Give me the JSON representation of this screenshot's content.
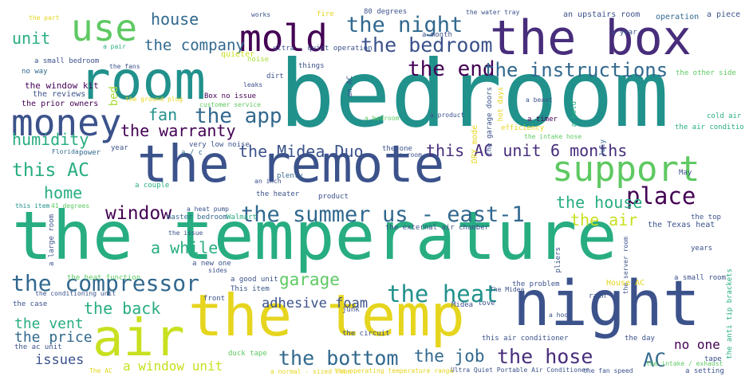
{
  "palette": {
    "yellow": "#e6d51e",
    "lime": "#a8db34",
    "green": "#5ec962",
    "teal": "#21918c",
    "seafoam": "#27ad81",
    "blue": "#3b528b",
    "indigo": "#31688e",
    "purple": "#440154",
    "violet": "#472d7b"
  },
  "words": [
    {
      "text": "bedroom",
      "color": "#21918c",
      "vertical": false
    },
    {
      "text": "the temperature",
      "color": "#27ad81",
      "vertical": false
    },
    {
      "text": "the remote",
      "color": "#3b528b",
      "vertical": false
    },
    {
      "text": "the box",
      "color": "#472d7b",
      "vertical": false
    },
    {
      "text": "room",
      "color": "#21918c",
      "vertical": false
    },
    {
      "text": "night",
      "color": "#3b528b",
      "vertical": false
    },
    {
      "text": "the temp",
      "color": "#e6d51e",
      "vertical": false
    },
    {
      "text": "air",
      "color": "#c8e020",
      "vertical": false
    },
    {
      "text": "mold",
      "color": "#440154",
      "vertical": false
    },
    {
      "text": "use",
      "color": "#5ec962",
      "vertical": false
    },
    {
      "text": "money",
      "color": "#3b528b",
      "vertical": false
    },
    {
      "text": "support",
      "color": "#5ec962",
      "vertical": false
    },
    {
      "text": "the night",
      "color": "#31688e",
      "vertical": false
    },
    {
      "text": "the bedroom",
      "color": "#3b528b",
      "vertical": false
    },
    {
      "text": "the end",
      "color": "#440154",
      "vertical": false
    },
    {
      "text": "the instructions",
      "color": "#31688e",
      "vertical": false
    },
    {
      "text": "the app",
      "color": "#31688e",
      "vertical": false
    },
    {
      "text": "the compressor",
      "color": "#31688e",
      "vertical": false
    },
    {
      "text": "the summer",
      "color": "#31688e",
      "vertical": false
    },
    {
      "text": "us - east-1",
      "color": "#31688e",
      "vertical": false
    },
    {
      "text": "window",
      "color": "#440154",
      "vertical": false
    },
    {
      "text": "place",
      "color": "#440154",
      "vertical": false
    },
    {
      "text": "the heat",
      "color": "#21918c",
      "vertical": false
    },
    {
      "text": "the bottom",
      "color": "#31688e",
      "vertical": false
    },
    {
      "text": "the hose",
      "color": "#472d7b",
      "vertical": false
    },
    {
      "text": "the job",
      "color": "#31688e",
      "vertical": false
    },
    {
      "text": "AC",
      "color": "#31688e",
      "vertical": false
    },
    {
      "text": "garage",
      "color": "#5ec962",
      "vertical": false
    },
    {
      "text": "house",
      "color": "#31688e",
      "vertical": false
    },
    {
      "text": "unit",
      "color": "#27ad81",
      "vertical": false
    },
    {
      "text": "the company",
      "color": "#31688e",
      "vertical": false
    },
    {
      "text": "fan",
      "color": "#21918c",
      "vertical": false
    },
    {
      "text": "the warranty",
      "color": "#440154",
      "vertical": false
    },
    {
      "text": "humidity",
      "color": "#27ad81",
      "vertical": false
    },
    {
      "text": "the Midea Duo",
      "color": "#3b528b",
      "vertical": false
    },
    {
      "text": "this AC unit",
      "color": "#472d7b",
      "vertical": false
    },
    {
      "text": "6 months",
      "color": "#472d7b",
      "vertical": false
    },
    {
      "text": "this AC",
      "color": "#27ad81",
      "vertical": false
    },
    {
      "text": "home",
      "color": "#27ad81",
      "vertical": false
    },
    {
      "text": "the house",
      "color": "#27ad81",
      "vertical": false
    },
    {
      "text": "the air",
      "color": "#c8e020",
      "vertical": false
    },
    {
      "text": "a while",
      "color": "#27ad81",
      "vertical": false
    },
    {
      "text": "the back",
      "color": "#27ad81",
      "vertical": false
    },
    {
      "text": "adhesive foam",
      "color": "#3b528b",
      "vertical": false
    },
    {
      "text": "the vent",
      "color": "#27ad81",
      "vertical": false
    },
    {
      "text": "the price",
      "color": "#31688e",
      "vertical": false
    },
    {
      "text": "issues",
      "color": "#3b528b",
      "vertical": false
    },
    {
      "text": "a window unit",
      "color": "#c8e020",
      "vertical": false
    },
    {
      "text": "no one",
      "color": "#440154",
      "vertical": false
    },
    {
      "text": "bed",
      "color": "#a8db34",
      "vertical": true
    },
    {
      "text": "the window kit",
      "color": "#440154",
      "vertical": false
    },
    {
      "text": "the reviews",
      "color": "#3b528b",
      "vertical": false
    },
    {
      "text": "the prior owners",
      "color": "#440154",
      "vertical": false
    },
    {
      "text": "a small bedroom",
      "color": "#3b528b",
      "vertical": false
    },
    {
      "text": "no way",
      "color": "#31688e",
      "vertical": false
    },
    {
      "text": "the fans",
      "color": "#3b528b",
      "vertical": false
    },
    {
      "text": "a pair",
      "color": "#27ad81",
      "vertical": false
    },
    {
      "text": "quieter",
      "color": "#c8e020",
      "vertical": false
    },
    {
      "text": "noise",
      "color": "#a8db34",
      "vertical": false
    },
    {
      "text": "things",
      "color": "#3b528b",
      "vertical": false
    },
    {
      "text": "dirt",
      "color": "#3b528b",
      "vertical": false
    },
    {
      "text": "leaks",
      "color": "#3b528b",
      "vertical": false
    },
    {
      "text": "Box no issue",
      "color": "#440154",
      "vertical": false
    },
    {
      "text": "the ground plug",
      "color": "#e6d51e",
      "vertical": false
    },
    {
      "text": "customer service",
      "color": "#5ec962",
      "vertical": false
    },
    {
      "text": "a month",
      "color": "#3b528b",
      "vertical": false
    },
    {
      "text": "ultra - quiet operation",
      "color": "#3b528b",
      "vertical": false
    },
    {
      "text": "an upstairs room",
      "color": "#3b528b",
      "vertical": false
    },
    {
      "text": "operation",
      "color": "#31688e",
      "vertical": false
    },
    {
      "text": "a piece",
      "color": "#3b528b",
      "vertical": false
    },
    {
      "text": "a year",
      "color": "#3b528b",
      "vertical": false
    },
    {
      "text": "the other side",
      "color": "#5ec962",
      "vertical": false
    },
    {
      "text": "cold air",
      "color": "#27ad81",
      "vertical": false
    },
    {
      "text": "the air conditioner",
      "color": "#27ad81",
      "vertical": false
    },
    {
      "text": "a timer",
      "color": "#440154",
      "vertical": false
    },
    {
      "text": "efficiency",
      "color": "#e6d51e",
      "vertical": false
    },
    {
      "text": "the intake hose",
      "color": "#5ec962",
      "vertical": false
    },
    {
      "text": "a hold",
      "color": "#27ad81",
      "vertical": true
    },
    {
      "text": "July",
      "color": "#31688e",
      "vertical": true
    },
    {
      "text": "the one",
      "color": "#3b528b",
      "vertical": false
    },
    {
      "text": "a room",
      "color": "#3b528b",
      "vertical": false
    },
    {
      "text": "DRY mode",
      "color": "#e6d51e",
      "vertical": true
    },
    {
      "text": "the garage doors",
      "color": "#3b528b",
      "vertical": true
    },
    {
      "text": "a bedroom",
      "color": "#5ec962",
      "vertical": false
    },
    {
      "text": "a product",
      "color": "#3b528b",
      "vertical": false
    },
    {
      "text": "hot days",
      "color": "#e6d51e",
      "vertical": true
    },
    {
      "text": "a beast",
      "color": "#3b528b",
      "vertical": false
    },
    {
      "text": "an AC",
      "color": "#3b528b",
      "vertical": true
    },
    {
      "text": "a / c",
      "color": "#31688e",
      "vertical": false
    },
    {
      "text": "plenty",
      "color": "#31688e",
      "vertical": false
    },
    {
      "text": "an inch",
      "color": "#3b528b",
      "vertical": false
    },
    {
      "text": "very low noise",
      "color": "#3b528b",
      "vertical": false
    },
    {
      "text": "year",
      "color": "#3b528b",
      "vertical": false
    },
    {
      "text": "power",
      "color": "#31688e",
      "vertical": false
    },
    {
      "text": "Florida",
      "color": "#31688e",
      "vertical": false
    },
    {
      "text": "a couple",
      "color": "#27ad81",
      "vertical": false
    },
    {
      "text": "this item",
      "color": "#21918c",
      "vertical": false
    },
    {
      "text": "41 degrees",
      "color": "#5ec962",
      "vertical": false
    },
    {
      "text": "a large room",
      "color": "#3b528b",
      "vertical": true
    },
    {
      "text": "the heater",
      "color": "#3b528b",
      "vertical": false
    },
    {
      "text": "product",
      "color": "#3b528b",
      "vertical": false
    },
    {
      "text": "a heat pump",
      "color": "#3b528b",
      "vertical": false
    },
    {
      "text": "master bedroom",
      "color": "#31688e",
      "vertical": false
    },
    {
      "text": "Walmart",
      "color": "#27ad81",
      "vertical": false
    },
    {
      "text": "the issue",
      "color": "#3b528b",
      "vertical": false
    },
    {
      "text": "a new one",
      "color": "#3b528b",
      "vertical": false
    },
    {
      "text": "sides",
      "color": "#3b528b",
      "vertical": false
    },
    {
      "text": "the external air chamber",
      "color": "#3b528b",
      "vertical": false
    },
    {
      "text": "the Texas heat",
      "color": "#3b528b",
      "vertical": false
    },
    {
      "text": "pliers",
      "color": "#3b528b",
      "vertical": true
    },
    {
      "text": "years",
      "color": "#3b528b",
      "vertical": false
    },
    {
      "text": "the top",
      "color": "#3b528b",
      "vertical": false
    },
    {
      "text": "the server room",
      "color": "#3b528b",
      "vertical": true
    },
    {
      "text": "a good unit",
      "color": "#3b528b",
      "vertical": false
    },
    {
      "text": "This item",
      "color": "#3b528b",
      "vertical": false
    },
    {
      "text": "the heat function",
      "color": "#5ec962",
      "vertical": false
    },
    {
      "text": "the case",
      "color": "#3b528b",
      "vertical": false
    },
    {
      "text": "the conditioning unit",
      "color": "#3b528b",
      "vertical": false
    },
    {
      "text": "the problem",
      "color": "#3b528b",
      "vertical": false
    },
    {
      "text": "House AC",
      "color": "#e6d51e",
      "vertical": false
    },
    {
      "text": "a small room",
      "color": "#3b528b",
      "vertical": false
    },
    {
      "text": "rain",
      "color": "#3b528b",
      "vertical": false
    },
    {
      "text": "front",
      "color": "#3b528b",
      "vertical": false
    },
    {
      "text": "love",
      "color": "#3b528b",
      "vertical": false
    },
    {
      "text": "Midea",
      "color": "#3b528b",
      "vertical": false
    },
    {
      "text": "The Midea",
      "color": "#3b528b",
      "vertical": false
    },
    {
      "text": "a hood",
      "color": "#3b528b",
      "vertical": false
    },
    {
      "text": "junk",
      "color": "#3b528b",
      "vertical": false
    },
    {
      "text": "the circuit",
      "color": "#3b528b",
      "vertical": false
    },
    {
      "text": "this air conditioner",
      "color": "#3b528b",
      "vertical": false
    },
    {
      "text": "the ac unit",
      "color": "#3b528b",
      "vertical": false
    },
    {
      "text": "the anti tip brackets",
      "color": "#27ad81",
      "vertical": true
    },
    {
      "text": "duck tape",
      "color": "#5ec962",
      "vertical": false
    },
    {
      "text": "the day",
      "color": "#3b528b",
      "vertical": false
    },
    {
      "text": "tape",
      "color": "#3b528b",
      "vertical": false
    },
    {
      "text": "a setting",
      "color": "#3b528b",
      "vertical": false
    },
    {
      "text": "Ultra Quiet Portable Air Conditioner",
      "color": "#3b528b",
      "vertical": false
    },
    {
      "text": "the fan speed",
      "color": "#3b528b",
      "vertical": false
    },
    {
      "text": "The AC",
      "color": "#e6d51e",
      "vertical": false
    },
    {
      "text": "a normal - sized room",
      "color": "#e6d51e",
      "vertical": false
    },
    {
      "text": "the operating temperature range",
      "color": "#e6d51e",
      "vertical": false
    },
    {
      "text": "the part",
      "color": "#e6d51e",
      "vertical": false
    },
    {
      "text": "80 degrees",
      "color": "#3b528b",
      "vertical": false
    },
    {
      "text": "the water tray",
      "color": "#3b528b",
      "vertical": false
    },
    {
      "text": "works",
      "color": "#3b528b",
      "vertical": false
    },
    {
      "text": "fire",
      "color": "#e6d51e",
      "vertical": false
    },
    {
      "text": "May",
      "color": "#3b528b",
      "vertical": false
    },
    {
      "text": "the intake / exhaust",
      "color": "#5ec962",
      "vertical": false
    }
  ]
}
